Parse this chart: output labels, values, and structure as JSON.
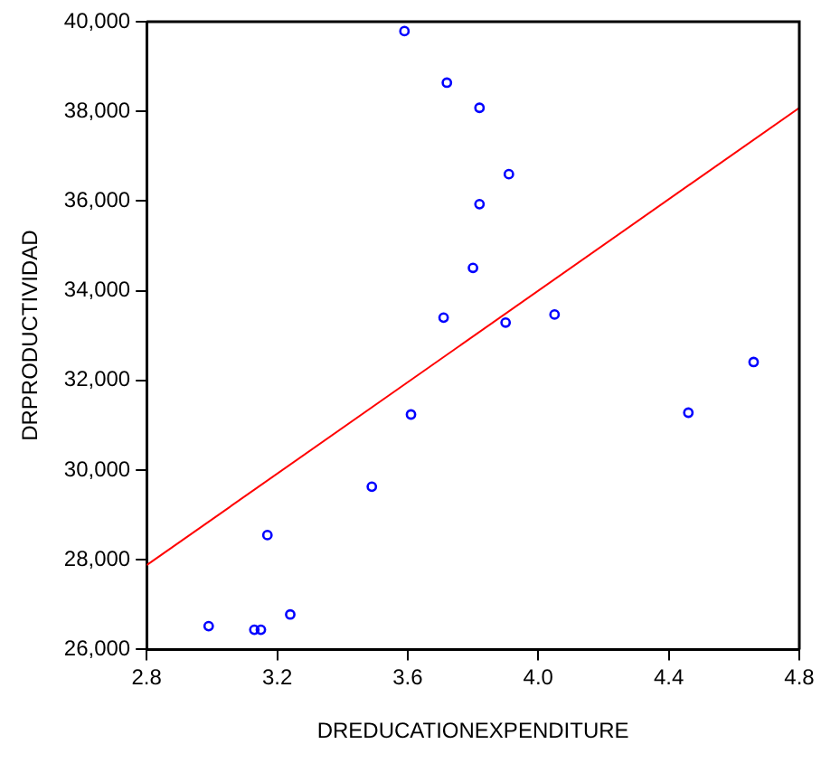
{
  "chart_data": {
    "type": "scatter",
    "xlabel": "DREDUCATIONEXPENDITURE",
    "ylabel": "DRPRODUCTIVIDAD",
    "xlim": [
      2.8,
      4.8
    ],
    "ylim": [
      26000,
      40000
    ],
    "xticks": [
      {
        "value": 2.8,
        "label": "2.8"
      },
      {
        "value": 3.2,
        "label": "3.2"
      },
      {
        "value": 3.6,
        "label": "3.6"
      },
      {
        "value": 4.0,
        "label": "4.0"
      },
      {
        "value": 4.4,
        "label": "4.4"
      },
      {
        "value": 4.8,
        "label": "4.8"
      }
    ],
    "yticks": [
      {
        "value": 26000,
        "label": "26,000"
      },
      {
        "value": 28000,
        "label": "28,000"
      },
      {
        "value": 30000,
        "label": "30,000"
      },
      {
        "value": 32000,
        "label": "32,000"
      },
      {
        "value": 34000,
        "label": "34,000"
      },
      {
        "value": 36000,
        "label": "36,000"
      },
      {
        "value": 38000,
        "label": "38,000"
      },
      {
        "value": 40000,
        "label": "40,000"
      }
    ],
    "grid": false,
    "legend": false,
    "series": [
      {
        "marker": "circle",
        "color": "#0000ff",
        "x": [
          3.59,
          3.72,
          3.82,
          3.91,
          3.82,
          3.8,
          3.71,
          3.9,
          4.05,
          3.61,
          4.46,
          4.66,
          3.49,
          3.17,
          3.24,
          2.99,
          3.13,
          3.15
        ],
        "values": [
          39790,
          38640,
          38080,
          36600,
          35930,
          34510,
          33400,
          33290,
          33470,
          31240,
          31280,
          32410,
          29630,
          28550,
          26780,
          26520,
          26440,
          26440
        ]
      },
      {
        "type": "line",
        "marker": "none",
        "color": "#ff0000",
        "x": [
          2.8,
          4.8
        ],
        "values": [
          27880,
          38080
        ]
      }
    ]
  }
}
